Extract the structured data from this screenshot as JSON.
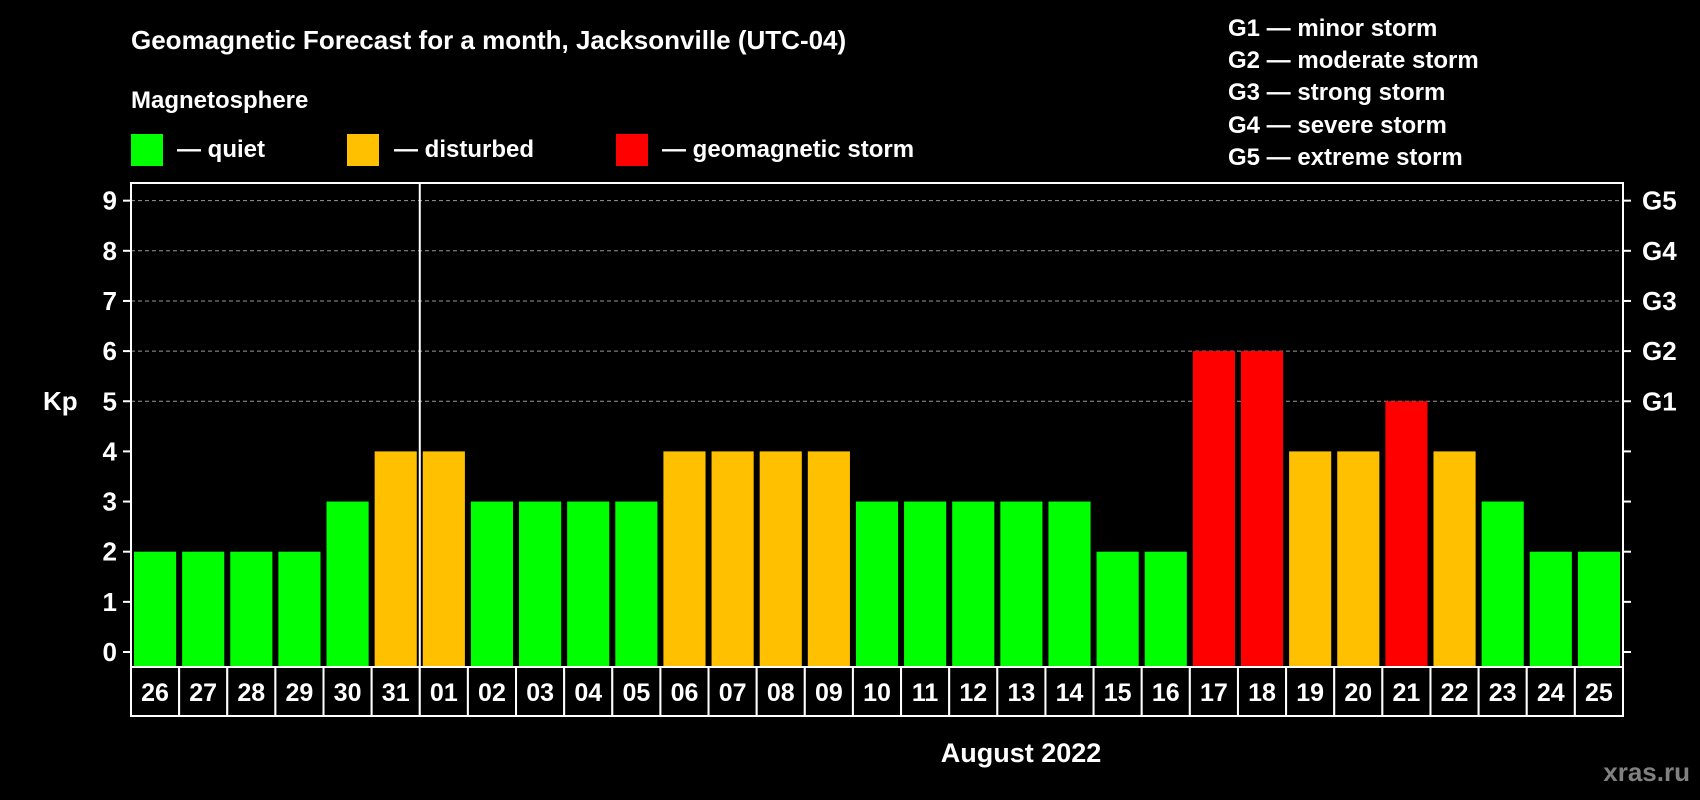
{
  "title": "Geomagnetic Forecast for a month, Jacksonville (UTC-04)",
  "legend": {
    "heading": "Magnetosphere",
    "items": [
      {
        "label": "— quiet",
        "color": "#00ff00"
      },
      {
        "label": "— disturbed",
        "color": "#ffc000"
      },
      {
        "label": "— geomagnetic storm",
        "color": "#ff0000"
      }
    ]
  },
  "storm_scale": [
    "G1 — minor storm",
    "G2 — moderate storm",
    "G3 — strong storm",
    "G4 — severe storm",
    "G5 — extreme storm"
  ],
  "watermark": "xras.ru",
  "chart_data": {
    "type": "bar",
    "title": "Geomagnetic Forecast for a month, Jacksonville (UTC-04)",
    "xlabel": "August 2022",
    "ylabel": "Kp",
    "ylim": [
      0,
      9
    ],
    "yticks": [
      "0",
      "1",
      "2",
      "3",
      "4",
      "5",
      "6",
      "7",
      "8",
      "9"
    ],
    "right_ticks": [
      {
        "value": 5,
        "label": "G1"
      },
      {
        "value": 6,
        "label": "G2"
      },
      {
        "value": 7,
        "label": "G3"
      },
      {
        "value": 8,
        "label": "G4"
      },
      {
        "value": 9,
        "label": "G5"
      }
    ],
    "grid": "dashed horizontal at 5-9",
    "month_divider_after": "31",
    "categories": [
      "26",
      "27",
      "28",
      "29",
      "30",
      "31",
      "01",
      "02",
      "03",
      "04",
      "05",
      "06",
      "07",
      "08",
      "09",
      "10",
      "11",
      "12",
      "13",
      "14",
      "15",
      "16",
      "17",
      "18",
      "19",
      "20",
      "21",
      "22",
      "23",
      "24",
      "25"
    ],
    "values": [
      2,
      2,
      2,
      2,
      3,
      4,
      4,
      3,
      3,
      3,
      3,
      4,
      4,
      4,
      4,
      3,
      3,
      3,
      3,
      3,
      2,
      2,
      6,
      6,
      4,
      4,
      5,
      4,
      3,
      2,
      2
    ],
    "color_rule": {
      "quiet": "<=3",
      "disturbed": "4",
      "storm": ">=5"
    }
  }
}
